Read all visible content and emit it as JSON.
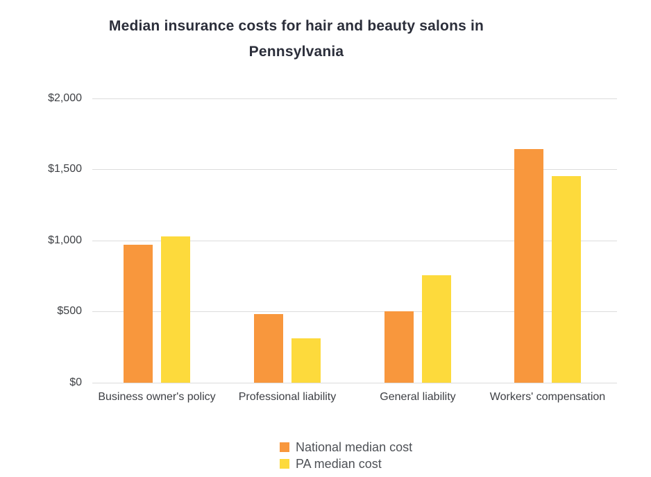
{
  "chart_data": {
    "type": "bar",
    "title": "Median insurance costs for hair and beauty salons in Pennsylvania",
    "categories": [
      "Business owner's policy",
      "Professional liability",
      "General liability",
      "Workers' compensation"
    ],
    "series": [
      {
        "name": "National median cost",
        "color": "#f8973d",
        "values": [
          970,
          480,
          500,
          1640
        ]
      },
      {
        "name": "PA median cost",
        "color": "#fdda3c",
        "values": [
          1030,
          310,
          755,
          1450
        ]
      }
    ],
    "xlabel": "",
    "ylabel": "",
    "ylim": [
      0,
      2000
    ],
    "yticks": [
      0,
      500,
      1000,
      1500,
      2000
    ],
    "ytick_labels": [
      "$0",
      "$500",
      "$1,000",
      "$1,500",
      "$2,000"
    ],
    "grid": true,
    "legend_position": "bottom-center"
  },
  "colors": {
    "background": "#ffffff",
    "gridline": "#dcdcdc",
    "title_text": "#2b2e3a",
    "axis_text": "#3f4145",
    "category_text": "#3d3f44",
    "legend_text": "#4e5156"
  }
}
